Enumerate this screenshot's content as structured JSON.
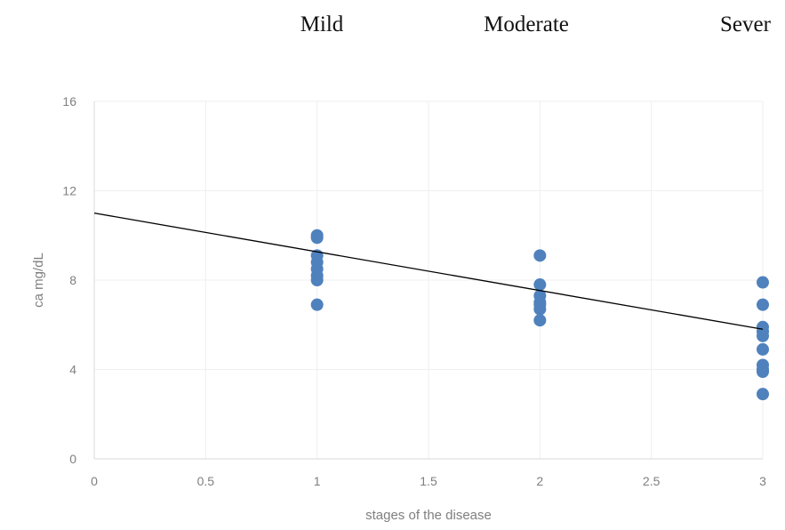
{
  "chart_data": {
    "type": "scatter",
    "header_labels": [
      "Mild",
      "Moderate",
      "Sever"
    ],
    "xlabel": "stages of the disease",
    "ylabel": "ca mg/dL",
    "xlim": [
      0,
      3
    ],
    "ylim": [
      0,
      16
    ],
    "x_ticks": [
      "0",
      "0.5",
      "1",
      "1.5",
      "2",
      "2.5",
      "3"
    ],
    "y_ticks": [
      "0",
      "4",
      "8",
      "12",
      "16"
    ],
    "grid": true,
    "legend": "none",
    "series": [
      {
        "color": "#4f81bd",
        "points": [
          [
            1,
            10.0
          ],
          [
            1,
            9.9
          ],
          [
            1,
            9.1
          ],
          [
            1,
            8.8
          ],
          [
            1,
            8.5
          ],
          [
            1,
            8.2
          ],
          [
            1,
            8.0
          ],
          [
            1,
            6.9
          ],
          [
            2,
            9.1
          ],
          [
            2,
            7.8
          ],
          [
            2,
            7.3
          ],
          [
            2,
            7.0
          ],
          [
            2,
            6.9
          ],
          [
            2,
            6.7
          ],
          [
            2,
            6.2
          ],
          [
            3,
            7.9
          ],
          [
            3,
            6.9
          ],
          [
            3,
            5.9
          ],
          [
            3,
            5.7
          ],
          [
            3,
            5.5
          ],
          [
            3,
            4.9
          ],
          [
            3,
            4.2
          ],
          [
            3,
            4.0
          ],
          [
            3,
            3.9
          ],
          [
            3,
            2.9
          ]
        ]
      }
    ],
    "trendline": {
      "type": "linear",
      "x": [
        0,
        3
      ],
      "y": [
        11.0,
        5.8
      ],
      "color": "#000000"
    }
  }
}
